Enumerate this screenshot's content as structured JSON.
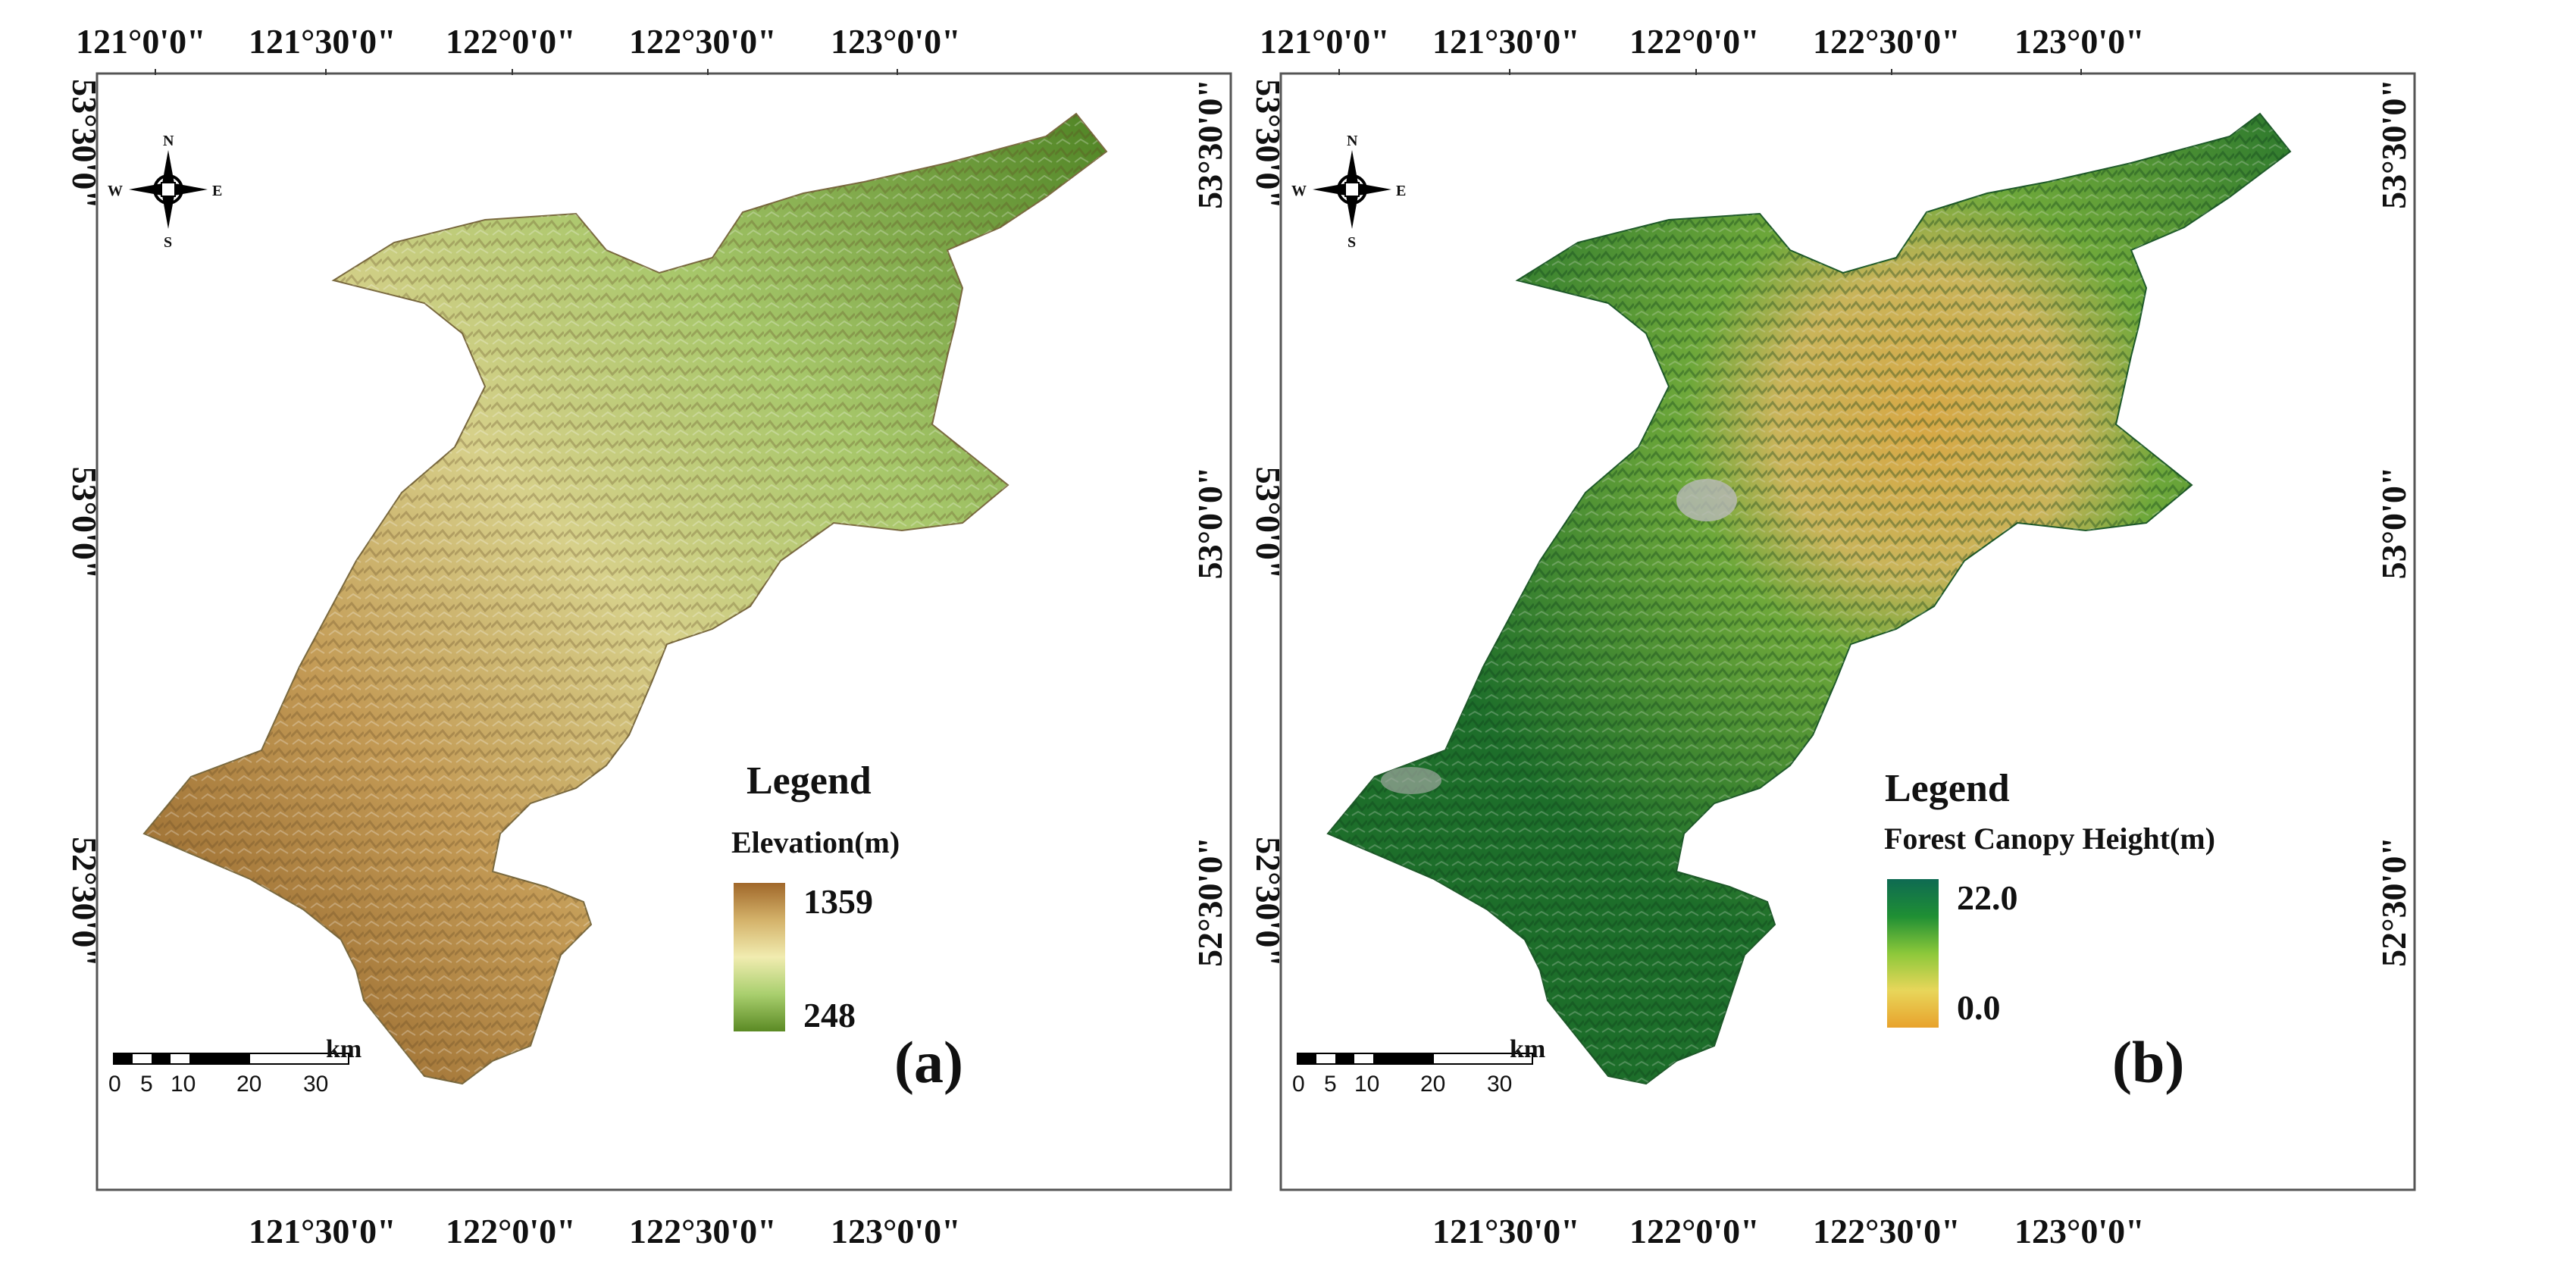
{
  "panels": [
    {
      "id": "a",
      "label": "(a)",
      "top_ticks": [
        "121°0'0\"",
        "121°30'0\"",
        "122°0'0\"",
        "122°30'0\"",
        "123°0'0\""
      ],
      "bottom_ticks": [
        "121°30'0\"",
        "122°0'0\"",
        "122°30'0\"",
        "123°0'0\""
      ],
      "left_ticks": [
        "53°30'0\"",
        "53°0'0\"",
        "52°30'0\""
      ],
      "right_ticks": [
        "53°30'0\"",
        "53°0'0\"",
        "52°30'0\""
      ],
      "legend": {
        "title": "Legend",
        "variable": "Elevation(m)",
        "max": "1359",
        "min": "248",
        "ramp": [
          "#a0672a",
          "#d4b26a",
          "#f1ecb0",
          "#a9cf6e",
          "#5b8a24"
        ]
      },
      "scale": {
        "ticks": [
          "0",
          "5",
          "10",
          "20",
          "30"
        ],
        "unit": "km"
      },
      "compass": {
        "n": "N",
        "s": "S",
        "e": "E",
        "w": "W"
      },
      "map_style": "elevation",
      "colors": {
        "region": "#a8c46e",
        "highland": "#b08a4d",
        "lowland": "#5f8d2c"
      }
    },
    {
      "id": "b",
      "label": "(b)",
      "top_ticks": [
        "121°0'0\"",
        "121°30'0\"",
        "122°0'0\"",
        "122°30'0\"",
        "123°0'0\""
      ],
      "bottom_ticks": [
        "121°30'0\"",
        "122°0'0\"",
        "122°30'0\"",
        "123°0'0\""
      ],
      "left_ticks": [
        "53°30'0\"",
        "53°0'0\"",
        "52°30'0\""
      ],
      "right_ticks": [
        "53°30'0\"",
        "53°0'0\"",
        "52°30'0\""
      ],
      "legend": {
        "title": "Legend",
        "variable": "Forest Canopy Height(m)",
        "max": "22.0",
        "min": "0.0",
        "ramp": [
          "#0e6a52",
          "#1f8f34",
          "#8cc83a",
          "#e8d65a",
          "#e8a22c"
        ]
      },
      "scale": {
        "ticks": [
          "0",
          "5",
          "10",
          "20",
          "30"
        ],
        "unit": "km"
      },
      "compass": {
        "n": "N",
        "s": "S",
        "e": "E",
        "w": "W"
      },
      "map_style": "canopy",
      "colors": {
        "region": "#2d8a2e",
        "highland": "#d9ad45",
        "lowland": "#165f3a"
      }
    }
  ]
}
